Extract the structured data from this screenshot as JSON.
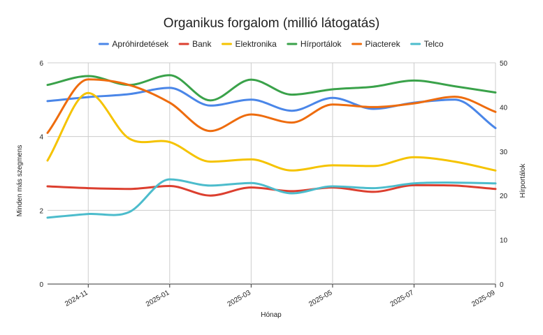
{
  "chart_data": {
    "type": "line",
    "title": "Organikus forgalom (millió látogatás)",
    "xlabel": "Hónap",
    "ylabel": "Minden más szegmens",
    "y2label": "Hírportálok",
    "ylim": [
      0,
      6
    ],
    "y2lim": [
      0,
      50
    ],
    "yticks": [
      0,
      2,
      4,
      6
    ],
    "y2ticks": [
      0,
      10,
      20,
      30,
      40,
      50
    ],
    "xlim": [
      0,
      11
    ],
    "x": [
      0,
      1,
      2,
      3,
      4,
      5,
      6,
      7,
      8,
      9,
      10,
      11
    ],
    "xticks": [
      {
        "x": 1,
        "label": "2024-11"
      },
      {
        "x": 3,
        "label": "2025-01"
      },
      {
        "x": 5,
        "label": "2025-03"
      },
      {
        "x": 7,
        "label": "2025-05"
      },
      {
        "x": 9,
        "label": "2025-07"
      },
      {
        "x": 11,
        "label": "2025-09"
      }
    ],
    "legend_position": "top",
    "grid": true,
    "series": [
      {
        "name": "Apróhirdetések",
        "color": "#4a86e8",
        "axis": "left",
        "values": [
          4.96,
          5.07,
          5.15,
          5.32,
          4.84,
          5.0,
          4.7,
          5.05,
          4.75,
          4.92,
          5.0,
          4.23
        ]
      },
      {
        "name": "Bank",
        "color": "#dc3f2f",
        "axis": "left",
        "values": [
          2.65,
          2.6,
          2.58,
          2.66,
          2.4,
          2.62,
          2.52,
          2.62,
          2.5,
          2.68,
          2.67,
          2.58
        ]
      },
      {
        "name": "Elektronika",
        "color": "#f5c300",
        "axis": "left",
        "values": [
          3.35,
          5.18,
          3.95,
          3.85,
          3.32,
          3.38,
          3.08,
          3.22,
          3.2,
          3.44,
          3.32,
          3.08
        ]
      },
      {
        "name": "Hírportálok",
        "color": "#3aa24a",
        "axis": "right",
        "values": [
          45.0,
          47.0,
          45.0,
          47.2,
          41.5,
          46.2,
          42.8,
          44.0,
          44.6,
          46.0,
          44.7,
          43.3
        ]
      },
      {
        "name": "Piacterek",
        "color": "#ee6c0e",
        "axis": "left",
        "values": [
          4.1,
          5.55,
          5.4,
          4.92,
          4.15,
          4.6,
          4.38,
          4.87,
          4.8,
          4.9,
          5.08,
          4.67
        ]
      },
      {
        "name": "Telco",
        "color": "#4cbccc",
        "axis": "left",
        "values": [
          1.8,
          1.9,
          1.95,
          2.84,
          2.67,
          2.74,
          2.46,
          2.65,
          2.6,
          2.73,
          2.75,
          2.73
        ]
      }
    ]
  }
}
